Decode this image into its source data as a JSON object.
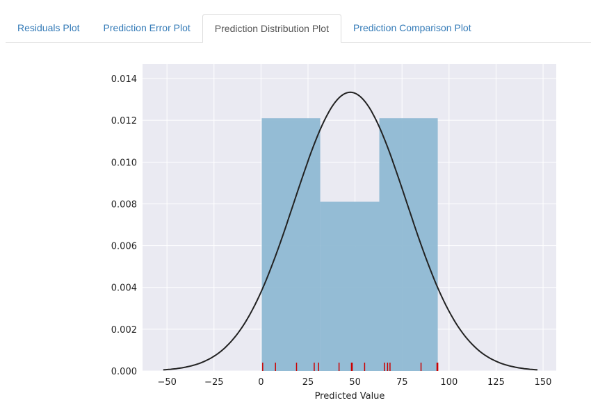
{
  "tabs": [
    {
      "label": "Residuals Plot",
      "active": false
    },
    {
      "label": "Prediction Error Plot",
      "active": false
    },
    {
      "label": "Prediction Distribution Plot",
      "active": true
    },
    {
      "label": "Prediction Comparison Plot",
      "active": false
    }
  ],
  "chart_data": {
    "type": "histogram",
    "title": "",
    "xlabel": "Predicted Value",
    "ylabel": "",
    "xlim": [
      -63,
      157
    ],
    "ylim": [
      0,
      0.0147
    ],
    "xticks": [
      -50,
      -25,
      0,
      25,
      50,
      75,
      100,
      125,
      150
    ],
    "xtick_labels": [
      "−50",
      "−25",
      "0",
      "25",
      "50",
      "75",
      "100",
      "125",
      "150"
    ],
    "yticks": [
      0,
      0.002,
      0.004,
      0.006,
      0.008,
      0.01,
      0.012,
      0.014
    ],
    "ytick_labels": [
      "0.000",
      "0.002",
      "0.004",
      "0.006",
      "0.008",
      "0.010",
      "0.012",
      "0.014"
    ],
    "grid": true,
    "bins": [
      {
        "x0": 0.4,
        "x1": 31.5,
        "density": 0.0121
      },
      {
        "x0": 31.5,
        "x1": 62.9,
        "density": 0.0081
      },
      {
        "x0": 62.9,
        "x1": 94.0,
        "density": 0.0121
      }
    ],
    "normal_fit": {
      "mean": 47.5,
      "std": 29.9,
      "x_range": [
        -52,
        147
      ]
    },
    "rug": [
      0.9,
      7.7,
      18.9,
      28.3,
      30.6,
      41.5,
      48.1,
      48.5,
      55.1,
      65.6,
      67.3,
      68.6,
      85.1,
      93.6,
      94.0
    ],
    "colors": {
      "background": "#eaeaf2",
      "bar": "#8fb9d3",
      "curve": "#222222",
      "rug": "#cc0000",
      "grid": "#ffffff"
    }
  }
}
